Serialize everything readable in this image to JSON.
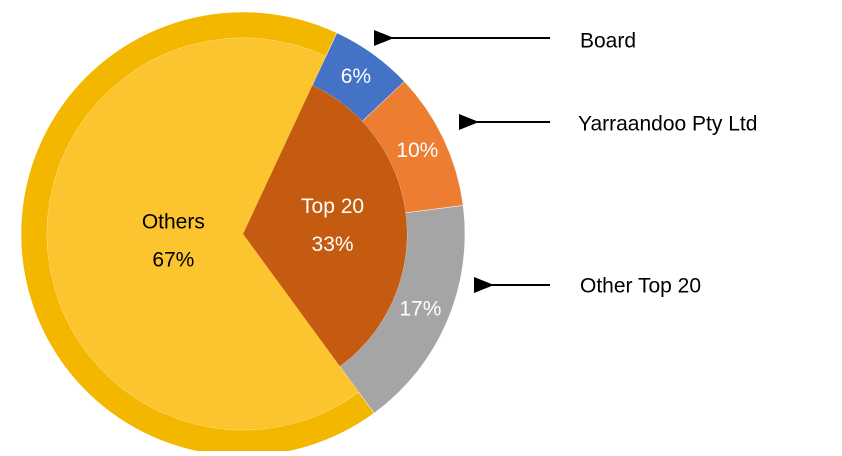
{
  "chart_data": {
    "type": "nested_pie",
    "inner": {
      "categories": [
        "Top 20",
        "Others"
      ],
      "values": [
        33,
        67
      ],
      "value_labels": [
        "33%",
        "67%"
      ],
      "colors": [
        "#c55a11",
        "#fcc42e"
      ]
    },
    "outer": {
      "categories": [
        "Board",
        "Yarraandoo Pty Ltd",
        "Other Top 20",
        null
      ],
      "values": [
        6,
        10,
        17,
        67
      ],
      "value_labels": [
        "6%",
        "10%",
        "17%",
        null
      ],
      "colors": [
        "#4472c4",
        "#ed7d31",
        "#a5a5a5",
        "#f4b700"
      ]
    }
  }
}
